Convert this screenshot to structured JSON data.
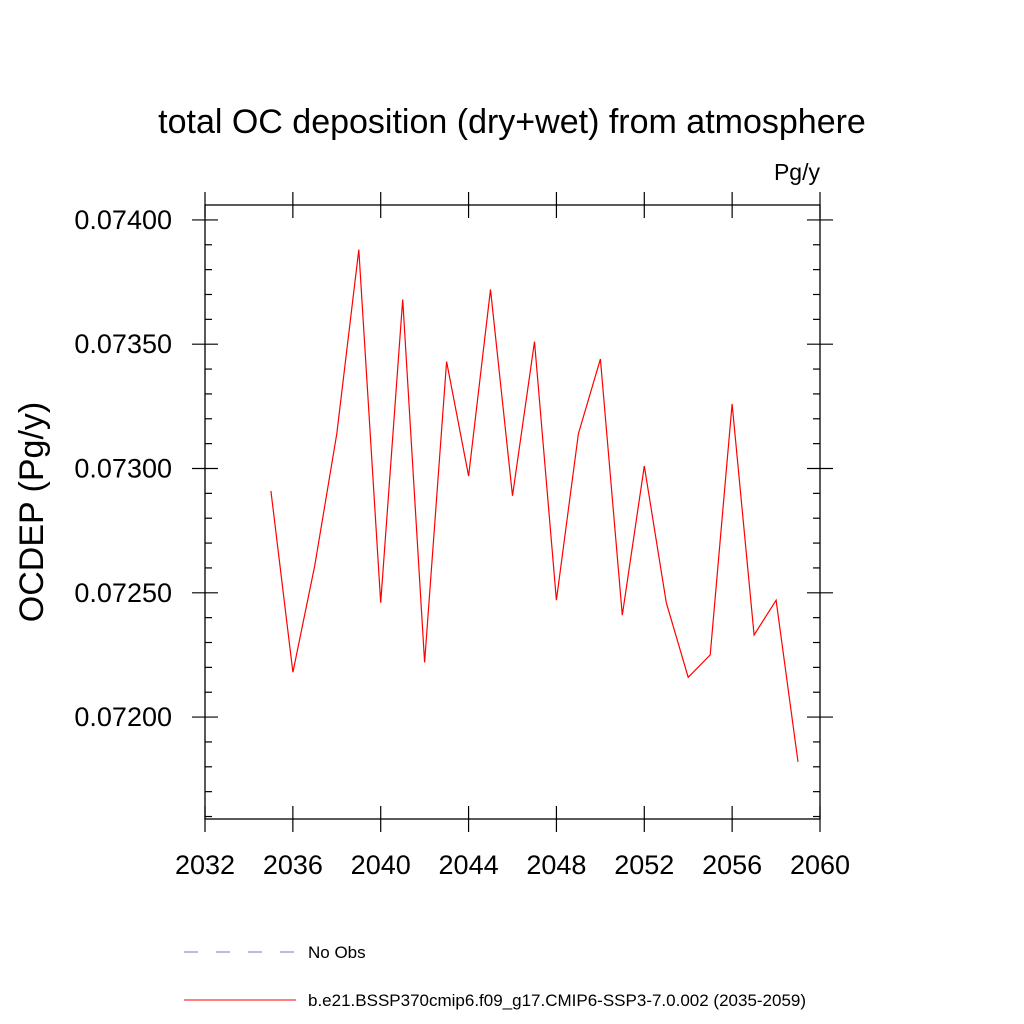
{
  "chart_data": {
    "type": "line",
    "title": "total OC deposition (dry+wet) from atmosphere",
    "units": "Pg/y",
    "ylabel": "OCDEP  (Pg/y)",
    "xlabel": "",
    "xlim": [
      2032,
      2060
    ],
    "ylim": [
      0.07159,
      0.07406
    ],
    "x_ticks": [
      2032,
      2036,
      2040,
      2044,
      2048,
      2052,
      2056,
      2060
    ],
    "x_tick_labels": [
      "2032",
      "2036",
      "2040",
      "2044",
      "2048",
      "2052",
      "2056",
      "2060"
    ],
    "y_ticks": [
      0.072,
      0.0725,
      0.073,
      0.0735,
      0.074
    ],
    "y_tick_labels": [
      "0.07200",
      "0.07250",
      "0.07300",
      "0.07350",
      "0.07400"
    ],
    "grid": false,
    "legend_position": "bottom",
    "series": [
      {
        "name": "b.e21.BSSP370cmip6.f09_g17.CMIP6-SSP3-7.0.002 (2035-2059)",
        "color": "#ff0000",
        "style": "solid",
        "x": [
          2035,
          2036,
          2037,
          2038,
          2039,
          2040,
          2041,
          2042,
          2043,
          2044,
          2045,
          2046,
          2047,
          2048,
          2049,
          2050,
          2051,
          2052,
          2053,
          2054,
          2055,
          2056,
          2057,
          2058,
          2059
        ],
        "values": [
          0.07291,
          0.07218,
          0.07261,
          0.07314,
          0.07388,
          0.07246,
          0.07368,
          0.07222,
          0.07343,
          0.07297,
          0.07372,
          0.07289,
          0.07351,
          0.07247,
          0.07314,
          0.07344,
          0.07241,
          0.07301,
          0.07246,
          0.07216,
          0.07225,
          0.07326,
          0.07233,
          0.07247,
          0.07182
        ]
      }
    ],
    "legend": [
      {
        "label": "No Obs",
        "color": "#7a7ab8",
        "style": "dashed"
      },
      {
        "label": "b.e21.BSSP370cmip6.f09_g17.CMIP6-SSP3-7.0.002 (2035-2059)",
        "color": "#ff0000",
        "style": "solid"
      }
    ]
  }
}
